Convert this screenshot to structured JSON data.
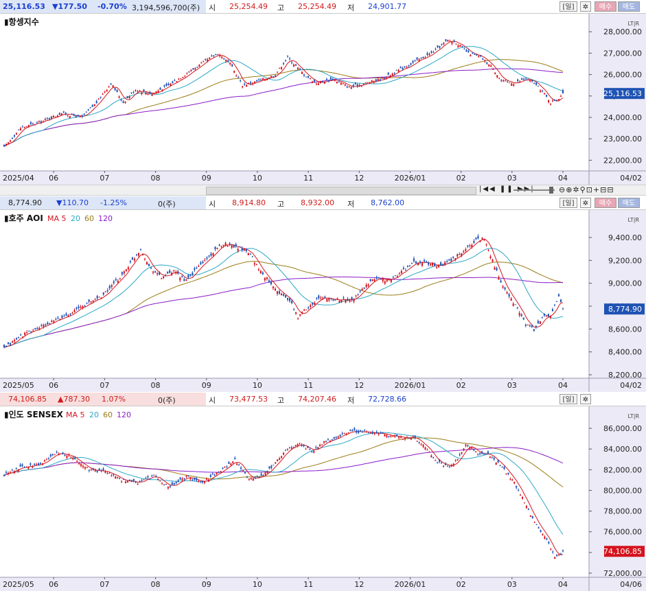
{
  "colors": {
    "up": "#d4141e",
    "down": "#1f53b4",
    "ma5": "#d4141e",
    "ma20": "#2aa6c8",
    "ma60": "#9a7a14",
    "ma120": "#8a1ac8",
    "axis_bg": "#eceaf6",
    "hl_bg": "#dde6f7"
  },
  "buttons": {
    "day": "[일]",
    "buy": "매수",
    "sell": "매도",
    "gear_icon": "gear-icon"
  },
  "hdr_labels": {
    "open": "시",
    "high": "고",
    "low": "저"
  },
  "panels": [
    {
      "header": {
        "price": "25,116.53",
        "change": "▼177.50",
        "pct": "-0.70%",
        "volume": "3,194,596,700(주)",
        "open": "25,254.49",
        "high": "25,254.49",
        "low": "24,901.77"
      },
      "title": "▮항셍지수",
      "legend": [],
      "scale_label": "LT|R",
      "yticks": [
        "28,000.00",
        "27,000.00",
        "26,000.00",
        "25,000.00",
        "24,000.00",
        "23,000.00",
        "22,000.00"
      ],
      "current_label": "25,116.53",
      "xticks": [
        "2025/04",
        "06",
        "07",
        "08",
        "09",
        "10",
        "11",
        "12",
        "2026/01",
        "02",
        "03",
        "04",
        "04/02"
      ]
    },
    {
      "header": {
        "price": "8,774.90",
        "change": "▼110.70",
        "pct": "-1.25%",
        "volume": "0(주)",
        "open": "8,914.80",
        "high": "8,932.00",
        "low": "8,762.00"
      },
      "title": "▮호주 AOI",
      "legend": [
        {
          "t": "MA 5",
          "c": "ma5"
        },
        {
          "t": "20",
          "c": "ma20"
        },
        {
          "t": "60",
          "c": "ma60"
        },
        {
          "t": "120",
          "c": "ma120"
        }
      ],
      "scale_label": "LT|R",
      "yticks": [
        "9,400.00",
        "9,200.00",
        "9,000.00",
        "8,800.00",
        "8,600.00",
        "8,400.00",
        "8,200.00"
      ],
      "current_label": "8,774.90",
      "xticks": [
        "2025/05",
        "06",
        "07",
        "08",
        "09",
        "10",
        "11",
        "12",
        "2026/01",
        "02",
        "03",
        "04",
        "04/02"
      ]
    },
    {
      "header": {
        "price": "74,106.85",
        "change": "▲787.30",
        "pct": "1.07%",
        "volume": "0(주)",
        "open": "73,477.53",
        "high": "74,207.46",
        "low": "72,728.66"
      },
      "title": "▮인도 SENSEX",
      "legend": [
        {
          "t": "MA 5",
          "c": "ma5"
        },
        {
          "t": "20",
          "c": "ma20"
        },
        {
          "t": "60",
          "c": "ma60"
        },
        {
          "t": "120",
          "c": "ma120"
        }
      ],
      "scale_label": "LT|R",
      "yticks": [
        "86,000.00",
        "84,000.00",
        "82,000.00",
        "80,000.00",
        "78,000.00",
        "76,000.00",
        "74,000.00",
        "72,000.00"
      ],
      "current_label": "74,106.85",
      "xticks": [
        "2025/05",
        "06",
        "07",
        "08",
        "09",
        "10",
        "11",
        "12",
        "2026/01",
        "02",
        "03",
        "04",
        "04/06"
      ]
    }
  ],
  "chart_data": [
    {
      "type": "candlestick",
      "title": "항셍지수",
      "ylim": [
        21500,
        28200
      ],
      "anchors": [
        [
          0,
          22600
        ],
        [
          8,
          23500
        ],
        [
          18,
          23800
        ],
        [
          28,
          24200
        ],
        [
          38,
          24000
        ],
        [
          45,
          24700
        ],
        [
          52,
          25600
        ],
        [
          58,
          24700
        ],
        [
          64,
          25300
        ],
        [
          72,
          25100
        ],
        [
          80,
          25500
        ],
        [
          88,
          26000
        ],
        [
          96,
          26500
        ],
        [
          104,
          27000
        ],
        [
          110,
          26500
        ],
        [
          116,
          25500
        ],
        [
          124,
          25700
        ],
        [
          132,
          26000
        ],
        [
          138,
          26800
        ],
        [
          146,
          26000
        ],
        [
          152,
          25600
        ],
        [
          160,
          25800
        ],
        [
          168,
          25400
        ],
        [
          176,
          25600
        ],
        [
          184,
          25800
        ],
        [
          192,
          26200
        ],
        [
          200,
          26600
        ],
        [
          208,
          27000
        ],
        [
          216,
          27600
        ],
        [
          220,
          27500
        ],
        [
          226,
          27000
        ],
        [
          232,
          26800
        ],
        [
          238,
          26300
        ],
        [
          242,
          25700
        ],
        [
          248,
          25600
        ],
        [
          254,
          25800
        ],
        [
          258,
          25600
        ],
        [
          262,
          25200
        ],
        [
          266,
          24700
        ],
        [
          270,
          24900
        ],
        [
          272,
          25116
        ]
      ],
      "current": 25116.53
    },
    {
      "type": "candlestick",
      "title": "호주 AOI",
      "ylim": [
        8170,
        9520
      ],
      "anchors": [
        [
          0,
          8430
        ],
        [
          8,
          8540
        ],
        [
          18,
          8620
        ],
        [
          28,
          8700
        ],
        [
          38,
          8800
        ],
        [
          48,
          8900
        ],
        [
          56,
          9050
        ],
        [
          62,
          9200
        ],
        [
          66,
          9300
        ],
        [
          70,
          9150
        ],
        [
          76,
          9050
        ],
        [
          82,
          9100
        ],
        [
          88,
          9020
        ],
        [
          94,
          9150
        ],
        [
          100,
          9250
        ],
        [
          106,
          9350
        ],
        [
          112,
          9320
        ],
        [
          118,
          9280
        ],
        [
          124,
          9100
        ],
        [
          130,
          8980
        ],
        [
          134,
          8900
        ],
        [
          138,
          8850
        ],
        [
          142,
          8700
        ],
        [
          146,
          8780
        ],
        [
          152,
          8870
        ],
        [
          160,
          8860
        ],
        [
          168,
          8850
        ],
        [
          174,
          8960
        ],
        [
          180,
          9050
        ],
        [
          186,
          9020
        ],
        [
          192,
          9100
        ],
        [
          198,
          9180
        ],
        [
          204,
          9180
        ],
        [
          210,
          9150
        ],
        [
          216,
          9200
        ],
        [
          222,
          9280
        ],
        [
          228,
          9380
        ],
        [
          232,
          9390
        ],
        [
          236,
          9200
        ],
        [
          240,
          9000
        ],
        [
          244,
          8880
        ],
        [
          248,
          8780
        ],
        [
          252,
          8640
        ],
        [
          256,
          8590
        ],
        [
          260,
          8700
        ],
        [
          264,
          8720
        ],
        [
          268,
          8880
        ],
        [
          270,
          8774.9
        ]
      ],
      "current": 8774.9
    },
    {
      "type": "candlestick",
      "title": "인도 SENSEX",
      "ylim": [
        71600,
        86800
      ],
      "anchors": [
        [
          0,
          81500
        ],
        [
          8,
          82200
        ],
        [
          18,
          82600
        ],
        [
          26,
          83600
        ],
        [
          34,
          83200
        ],
        [
          42,
          82000
        ],
        [
          50,
          81800
        ],
        [
          58,
          81000
        ],
        [
          66,
          80700
        ],
        [
          74,
          81400
        ],
        [
          82,
          80300
        ],
        [
          90,
          81300
        ],
        [
          98,
          80800
        ],
        [
          106,
          81800
        ],
        [
          114,
          83000
        ],
        [
          120,
          81300
        ],
        [
          126,
          81200
        ],
        [
          132,
          82200
        ],
        [
          140,
          84100
        ],
        [
          146,
          84500
        ],
        [
          152,
          83800
        ],
        [
          158,
          84700
        ],
        [
          166,
          85300
        ],
        [
          172,
          85700
        ],
        [
          180,
          85600
        ],
        [
          188,
          85400
        ],
        [
          196,
          85100
        ],
        [
          202,
          85200
        ],
        [
          208,
          84200
        ],
        [
          214,
          82700
        ],
        [
          220,
          82300
        ],
        [
          224,
          83000
        ],
        [
          228,
          84500
        ],
        [
          234,
          83600
        ],
        [
          240,
          83400
        ],
        [
          246,
          82200
        ],
        [
          252,
          80700
        ],
        [
          256,
          79300
        ],
        [
          260,
          77700
        ],
        [
          264,
          76300
        ],
        [
          268,
          75200
        ],
        [
          272,
          73500
        ],
        [
          276,
          74106.85
        ]
      ],
      "current": 74106.85
    }
  ]
}
